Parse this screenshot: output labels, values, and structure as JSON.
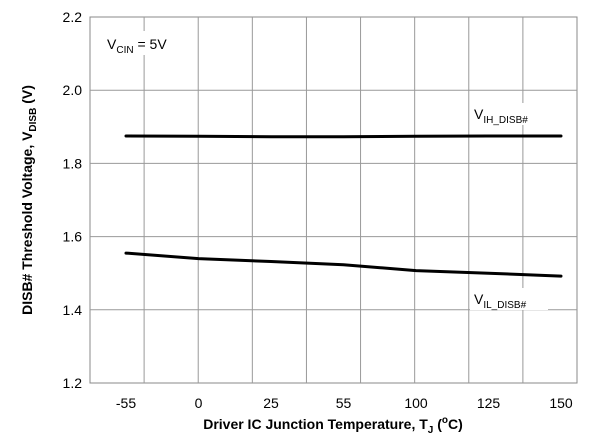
{
  "chart_data": {
    "type": "line",
    "xlabel": {
      "main": "Driver IC Junction Temperature, T",
      "sub": "J",
      "unit_open": " (",
      "unit_sup": "o",
      "unit_close": "C)"
    },
    "ylabel": {
      "main": "DISB# Threshold Voltage, V",
      "sub": "DISB",
      "unit": " (V)"
    },
    "x_tick_labels": [
      "-55",
      "0",
      "25",
      "55",
      "100",
      "125",
      "150"
    ],
    "y_tick_labels": [
      "1.2",
      "1.4",
      "1.6",
      "1.8",
      "2.0",
      "2.2"
    ],
    "x_range": [
      -75,
      150
    ],
    "ylim": [
      1.2,
      2.2
    ],
    "grid": true,
    "annotation": {
      "main": "V",
      "sub": "CIN",
      "rest": " = 5V"
    },
    "series": [
      {
        "name": "V_IH_DISB#",
        "label_main": "V",
        "label_sub": "IH_DISB#",
        "x": [
          -55,
          0,
          25,
          55,
          100,
          125,
          150
        ],
        "values": [
          1.875,
          1.874,
          1.873,
          1.873,
          1.874,
          1.875,
          1.875
        ],
        "color": "#000000"
      },
      {
        "name": "V_IL_DISB#",
        "label_main": "V",
        "label_sub": "IL_DISB#",
        "x": [
          -55,
          0,
          25,
          55,
          100,
          125,
          150
        ],
        "values": [
          1.555,
          1.54,
          1.532,
          1.523,
          1.507,
          1.5,
          1.492
        ],
        "color": "#000000"
      }
    ]
  }
}
